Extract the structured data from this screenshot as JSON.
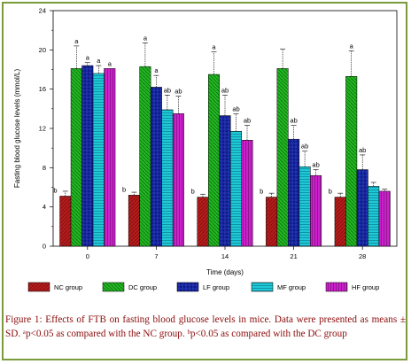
{
  "chart_data": {
    "type": "bar",
    "xlabel": "Time (days)",
    "ylabel": "Fasting blood glucose levels (mmol/L)",
    "ylim": [
      0,
      24
    ],
    "yticks": [
      0,
      4,
      8,
      12,
      16,
      20,
      24
    ],
    "categories": [
      "0",
      "7",
      "14",
      "21",
      "28"
    ],
    "series": [
      {
        "name": "NC group",
        "color": "#b71c1c",
        "pattern": "diag-left",
        "values": [
          5.1,
          5.2,
          5.0,
          5.0,
          5.0
        ],
        "errors": [
          0.5,
          0.3,
          0.3,
          0.4,
          0.4
        ],
        "labels": [
          "b",
          "b",
          "b",
          "b",
          "b"
        ]
      },
      {
        "name": "DC group",
        "color": "#22b822",
        "pattern": "diag-right",
        "values": [
          18.1,
          18.3,
          17.5,
          18.1,
          17.3
        ],
        "errors": [
          2.3,
          2.4,
          2.3,
          2.0,
          2.6
        ],
        "labels": [
          "a",
          "a",
          "a",
          "",
          "a"
        ]
      },
      {
        "name": "LF group",
        "color": "#0d1a8c",
        "pattern": "cross",
        "values": [
          18.4,
          16.2,
          13.3,
          10.9,
          7.8
        ],
        "errors": [
          0.3,
          1.2,
          2.1,
          1.4,
          1.5
        ],
        "labels": [
          "a",
          "a",
          "ab",
          "ab",
          "ab"
        ]
      },
      {
        "name": "MF group",
        "color": "#1fc8d8",
        "pattern": "horiz",
        "values": [
          17.6,
          13.9,
          11.7,
          8.1,
          6.1
        ],
        "errors": [
          0.8,
          1.5,
          1.8,
          1.6,
          0.4
        ],
        "labels": [
          "a",
          "ab",
          "ab",
          "ab",
          ""
        ]
      },
      {
        "name": "HF group",
        "color": "#cc22cc",
        "pattern": "vert",
        "values": [
          18.1,
          13.5,
          10.8,
          7.2,
          5.6
        ],
        "errors": [
          0.0,
          1.8,
          1.5,
          0.6,
          0.2
        ],
        "labels": [
          "a",
          "ab",
          "ab",
          "ab",
          ""
        ]
      }
    ],
    "grid": false,
    "legend_position": "bottom"
  },
  "caption": "Figure 1: Effects of FTB on fasting blood glucose levels in mice. Data were presented as means ± SD. ᵃp<0.05 as compared with the NC group. ᵇp<0.05 as compared with the DC group"
}
